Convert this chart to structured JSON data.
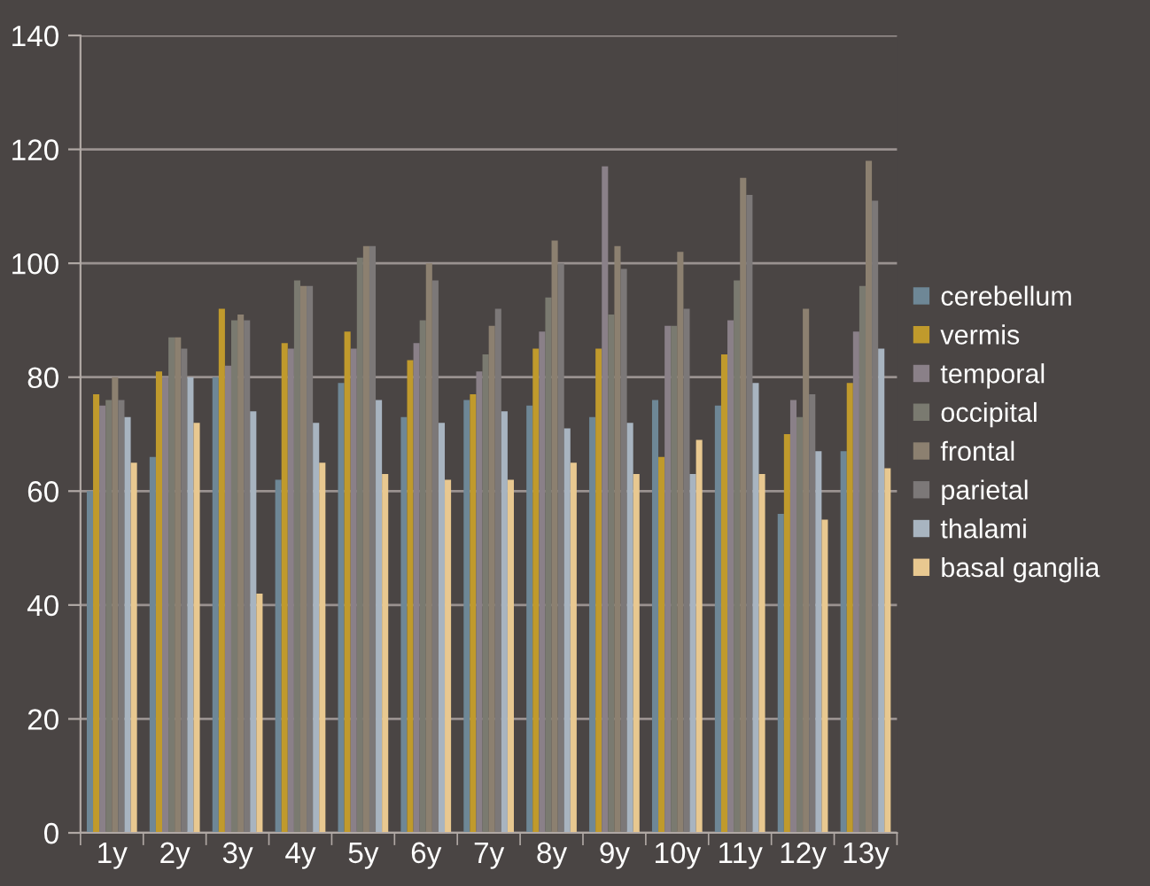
{
  "chart_data": {
    "type": "bar",
    "categories": [
      "1y",
      "2y",
      "3y",
      "4y",
      "5y",
      "6y",
      "7y",
      "8y",
      "9y",
      "10y",
      "11y",
      "12y",
      "13y"
    ],
    "series": [
      {
        "name": "cerebellum",
        "color": "#6e8796",
        "values": [
          60,
          66,
          80,
          62,
          79,
          73,
          76,
          75,
          73,
          76,
          75,
          56,
          67
        ]
      },
      {
        "name": "vermis",
        "color": "#c09a2c",
        "values": [
          77,
          81,
          92,
          86,
          88,
          83,
          77,
          85,
          85,
          66,
          84,
          70,
          79
        ]
      },
      {
        "name": "temporal",
        "color": "#8a8088",
        "values": [
          75,
          80,
          82,
          85,
          85,
          86,
          81,
          88,
          117,
          89,
          90,
          76,
          88
        ]
      },
      {
        "name": "occipital",
        "color": "#7a7a70",
        "values": [
          76,
          87,
          90,
          97,
          101,
          90,
          84,
          94,
          91,
          89,
          97,
          73,
          96
        ]
      },
      {
        "name": "frontal",
        "color": "#8c8070",
        "values": [
          80,
          87,
          91,
          96,
          103,
          100,
          89,
          104,
          103,
          102,
          115,
          92,
          118
        ]
      },
      {
        "name": "parietal",
        "color": "#7c7878",
        "values": [
          76,
          85,
          90,
          96,
          103,
          97,
          92,
          100,
          99,
          92,
          112,
          77,
          111
        ]
      },
      {
        "name": "thalami",
        "color": "#a8b4c0",
        "values": [
          73,
          80,
          74,
          72,
          76,
          72,
          74,
          71,
          72,
          63,
          79,
          67,
          85
        ]
      },
      {
        "name": "basal ganglia",
        "color": "#e8c890",
        "values": [
          65,
          72,
          42,
          65,
          63,
          62,
          62,
          65,
          63,
          69,
          63,
          55,
          64
        ]
      }
    ],
    "ylim": [
      0,
      140
    ],
    "yticks": [
      0,
      20,
      40,
      60,
      80,
      100,
      120,
      140
    ],
    "grid": "y",
    "legend": "right"
  }
}
